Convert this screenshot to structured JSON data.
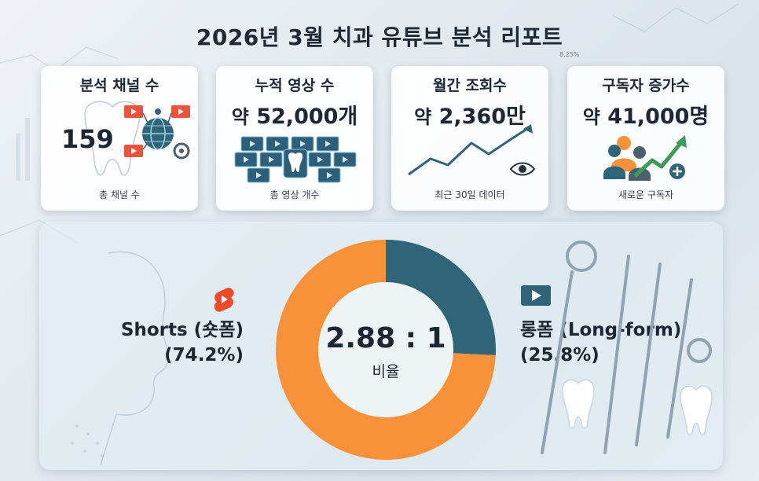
{
  "title": "2026년 3월 치과 유튜브 분석 리포트",
  "background_label": "8.25%",
  "cards": [
    {
      "title": "분석 채널 수",
      "value": "159",
      "foot": "총 채널 수"
    },
    {
      "title": "누적 영상 수",
      "value_prefix": "약",
      "value": "52,000개",
      "foot": "총 영상 개수"
    },
    {
      "title": "월간 조회수",
      "value_prefix": "약",
      "value": "2,360만",
      "foot": "최근 30일 데이터"
    },
    {
      "title": "구독자 증가수",
      "value_prefix": "약",
      "value": "41,000명",
      "foot": "새로운 구독자"
    }
  ],
  "chart_data": {
    "type": "pie",
    "donut": true,
    "categories": [
      "Shorts (숏폼)",
      "롱폼 (Long-form)"
    ],
    "values": [
      74.2,
      25.8
    ],
    "value_labels": [
      "(74.2%)",
      "(25.8%)"
    ],
    "center_text": "2.88 : 1",
    "center_label": "비율",
    "colors": [
      "#f7923a",
      "#2f6479"
    ]
  },
  "icons": {
    "shorts": "youtube-shorts-icon",
    "longform": "video-play-icon",
    "channels": "globe-network-icon",
    "videos": "video-grid-icon",
    "views": "eye-icon",
    "subscribers": "people-growth-icon"
  }
}
